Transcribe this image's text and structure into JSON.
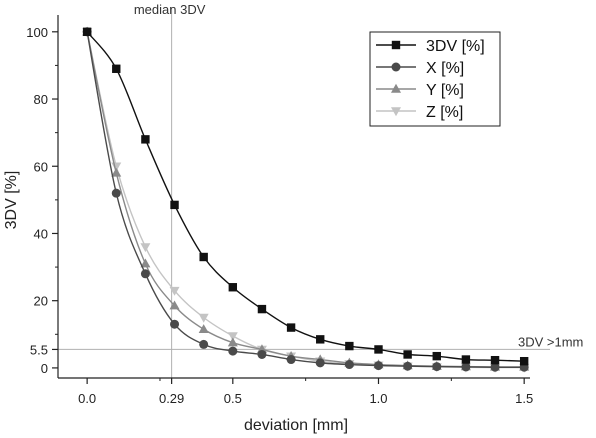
{
  "chart_data": {
    "type": "line",
    "title": "",
    "xlabel": "deviation [mm]",
    "ylabel": "3DV [%]",
    "xlim": [
      -0.1,
      1.52
    ],
    "ylim": [
      -3,
      105
    ],
    "grid": false,
    "legend_position": "top-right",
    "x_ticks": [
      {
        "value": 0.0,
        "label": "0.0"
      },
      {
        "value": 0.29,
        "label": "0.29"
      },
      {
        "value": 0.5,
        "label": "0.5"
      },
      {
        "value": 1.0,
        "label": "1.0"
      },
      {
        "value": 1.5,
        "label": "1.5"
      }
    ],
    "x_minor_ticks": [
      0.25,
      0.75,
      1.25
    ],
    "y_ticks": [
      {
        "value": 0,
        "label": "0"
      },
      {
        "value": 5.5,
        "label": "5.5"
      },
      {
        "value": 20,
        "label": "20"
      },
      {
        "value": 40,
        "label": "40"
      },
      {
        "value": 60,
        "label": "60"
      },
      {
        "value": 80,
        "label": "80"
      },
      {
        "value": 100,
        "label": "100"
      }
    ],
    "y_minor_ticks": [
      10,
      30,
      50,
      70,
      90
    ],
    "annotations": {
      "median_line": {
        "x": 0.29,
        "label": "median 3DV"
      },
      "threshold_line": {
        "y": 5.5,
        "label": "3DV >1mm"
      }
    },
    "x": [
      0.0,
      0.1,
      0.2,
      0.3,
      0.4,
      0.5,
      0.6,
      0.7,
      0.8,
      0.9,
      1.0,
      1.1,
      1.2,
      1.3,
      1.4,
      1.5
    ],
    "series": [
      {
        "name": "3DV [%]",
        "color": "#111111",
        "marker": "square",
        "values": [
          100,
          89,
          68,
          48.5,
          33,
          24,
          17.5,
          12,
          8.5,
          6.5,
          5.5,
          4,
          3.5,
          2.5,
          2.3,
          2
        ]
      },
      {
        "name": "X [%]",
        "color": "#4a4a4a",
        "marker": "circle",
        "values": [
          100,
          52,
          28,
          13,
          7,
          5,
          4,
          2.5,
          1.5,
          1,
          0.7,
          0.5,
          0.4,
          0.3,
          0.2,
          0.2
        ]
      },
      {
        "name": "Y [%]",
        "color": "#8a8a8a",
        "marker": "triangle-up",
        "values": [
          100,
          58,
          31,
          18.5,
          11.5,
          7.5,
          5.5,
          3.5,
          2.5,
          1.5,
          1,
          0.7,
          0.5,
          0.4,
          0.3,
          0.3
        ]
      },
      {
        "name": "Z [%]",
        "color": "#c4c4c4",
        "marker": "triangle-down",
        "values": [
          100,
          60,
          36,
          23,
          15,
          9.5,
          5.5,
          3.5,
          2,
          1.2,
          0.8,
          0.5,
          0.3,
          0.2,
          0.1,
          0.1
        ]
      }
    ]
  }
}
